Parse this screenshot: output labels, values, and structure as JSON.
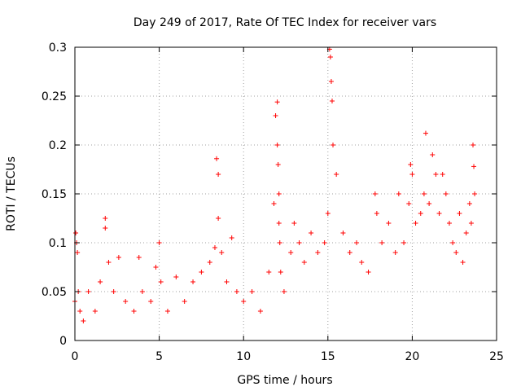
{
  "chart_data": {
    "type": "scatter",
    "title": "Day 249 of 2017, Rate Of TEC Index for receiver vars",
    "xlabel": "GPS time / hours",
    "ylabel": "ROTI / TECUs",
    "xlim": [
      0,
      25
    ],
    "ylim": [
      0,
      0.3
    ],
    "x_ticks": [
      0,
      5,
      10,
      15,
      20,
      25
    ],
    "x_tick_labels": [
      "0",
      "5",
      "10",
      "15",
      "20",
      "25"
    ],
    "y_ticks": [
      0,
      0.05,
      0.1,
      0.15,
      0.2,
      0.25,
      0.3
    ],
    "y_tick_labels": [
      "0",
      "0.05",
      "0.1",
      "0.15",
      "0.2",
      "0.25",
      "0.3"
    ],
    "grid": true,
    "marker": "+",
    "marker_color": "#ff0000",
    "series": [
      {
        "x": [
          0.0,
          0.05,
          0.1,
          0.15,
          0.2,
          0.3,
          0.5,
          0.8,
          1.2,
          1.5,
          1.8,
          1.8,
          2.0,
          2.3,
          2.6,
          3.0,
          3.5,
          3.8,
          4.0,
          4.5,
          4.8,
          5.0,
          5.1,
          5.5,
          6.0,
          6.5,
          7.0,
          7.5,
          8.0,
          8.3,
          8.4,
          8.5,
          8.5,
          8.7,
          9.0,
          9.3,
          9.6,
          10.0,
          10.5,
          11.0,
          11.5,
          11.8,
          11.9,
          12.0,
          12.0,
          12.05,
          12.1,
          12.1,
          12.15,
          12.2,
          12.4,
          12.8,
          13.0,
          13.3,
          13.6,
          14.0,
          14.4,
          14.8,
          15.0,
          15.1,
          15.15,
          15.2,
          15.25,
          15.3,
          15.5,
          15.9,
          16.3,
          16.7,
          17.0,
          17.4,
          17.8,
          17.9,
          18.2,
          18.6,
          19.0,
          19.2,
          19.5,
          19.8,
          19.9,
          20.0,
          20.2,
          20.5,
          20.7,
          20.8,
          21.0,
          21.2,
          21.4,
          21.6,
          21.8,
          22.0,
          22.2,
          22.4,
          22.6,
          22.8,
          23.0,
          23.2,
          23.4,
          23.5,
          23.6,
          23.65,
          23.7
        ],
        "y": [
          0.04,
          0.11,
          0.1,
          0.09,
          0.05,
          0.03,
          0.02,
          0.05,
          0.03,
          0.06,
          0.125,
          0.115,
          0.08,
          0.05,
          0.085,
          0.04,
          0.03,
          0.085,
          0.05,
          0.04,
          0.075,
          0.1,
          0.06,
          0.03,
          0.065,
          0.04,
          0.06,
          0.07,
          0.08,
          0.095,
          0.186,
          0.17,
          0.125,
          0.09,
          0.06,
          0.105,
          0.05,
          0.04,
          0.05,
          0.03,
          0.07,
          0.14,
          0.23,
          0.244,
          0.2,
          0.18,
          0.15,
          0.12,
          0.1,
          0.07,
          0.05,
          0.09,
          0.12,
          0.1,
          0.08,
          0.11,
          0.09,
          0.1,
          0.13,
          0.298,
          0.29,
          0.265,
          0.245,
          0.2,
          0.17,
          0.11,
          0.09,
          0.1,
          0.08,
          0.07,
          0.15,
          0.13,
          0.1,
          0.12,
          0.09,
          0.15,
          0.1,
          0.14,
          0.18,
          0.17,
          0.12,
          0.13,
          0.15,
          0.212,
          0.14,
          0.19,
          0.17,
          0.13,
          0.17,
          0.15,
          0.12,
          0.1,
          0.09,
          0.13,
          0.08,
          0.11,
          0.14,
          0.12,
          0.2,
          0.178,
          0.15
        ]
      }
    ]
  }
}
